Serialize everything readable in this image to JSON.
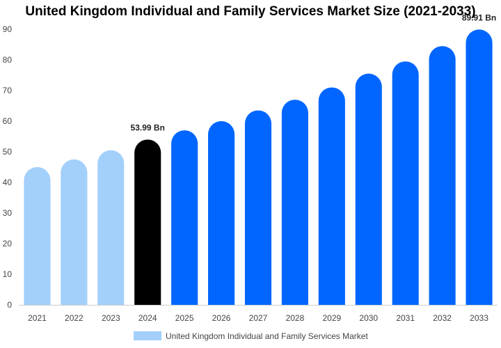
{
  "chart_data": {
    "type": "bar",
    "title": "United Kingdom Individual and Family Services Market Size (2021-2033)",
    "categories": [
      "2021",
      "2022",
      "2023",
      "2024",
      "2025",
      "2026",
      "2027",
      "2028",
      "2029",
      "2030",
      "2031",
      "2032",
      "2033"
    ],
    "series": [
      {
        "name": "United Kingdom Individual and Family Services Market",
        "values": [
          45.0,
          47.5,
          50.5,
          53.99,
          57.0,
          60.0,
          63.5,
          67.0,
          71.0,
          75.5,
          79.5,
          84.5,
          89.91
        ]
      }
    ],
    "data_labels": [
      {
        "category": "2024",
        "text": "53.99 Bn"
      },
      {
        "category": "2033",
        "text": "89.91 Bn"
      }
    ],
    "ylim": [
      0,
      90
    ],
    "yticks": [
      0,
      10,
      20,
      30,
      40,
      50,
      60,
      70,
      80,
      90
    ],
    "legend_position": "bottom",
    "grid": false,
    "colors": {
      "historical": "#a3cffb",
      "current": "#000000",
      "forecast": "#0066ff",
      "legend_swatch": "#a3cffb"
    },
    "historical_count": 3,
    "current_index": 3
  }
}
